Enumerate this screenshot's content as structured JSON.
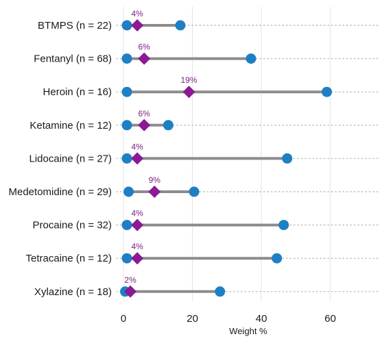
{
  "chart_data": {
    "type": "dumbbell",
    "xlabel": "Weight %",
    "xlim": [
      -2,
      74
    ],
    "xticks": [
      "0",
      "20",
      "40",
      "60"
    ],
    "grid": true,
    "colors": {
      "endpoint": "#1f7fc4",
      "median": "#8b1a94",
      "segment": "#8c8c8c",
      "label": "#7b1f86",
      "grid": "#e3e3e3"
    },
    "rows": [
      {
        "label": "BTMPS (n = 22)",
        "min": 1,
        "max": 16.5,
        "median": 4,
        "median_label": "4%"
      },
      {
        "label": "Fentanyl (n = 68)",
        "min": 1,
        "max": 37,
        "median": 6,
        "median_label": "6%"
      },
      {
        "label": "Heroin (n = 16)",
        "min": 1,
        "max": 59,
        "median": 19,
        "median_label": "19%"
      },
      {
        "label": "Ketamine (n = 12)",
        "min": 1,
        "max": 13,
        "median": 6,
        "median_label": "6%"
      },
      {
        "label": "Lidocaine (n = 27)",
        "min": 1,
        "max": 47.5,
        "median": 4,
        "median_label": "4%"
      },
      {
        "label": "Medetomidine (n = 29)",
        "min": 1.5,
        "max": 20.5,
        "median": 9,
        "median_label": "9%"
      },
      {
        "label": "Procaine (n = 32)",
        "min": 1,
        "max": 46.5,
        "median": 4,
        "median_label": "4%"
      },
      {
        "label": "Tetracaine (n = 12)",
        "min": 1,
        "max": 44.5,
        "median": 4,
        "median_label": "4%"
      },
      {
        "label": "Xylazine (n = 18)",
        "min": 0.5,
        "max": 28,
        "median": 2,
        "median_label": "2%"
      }
    ]
  }
}
